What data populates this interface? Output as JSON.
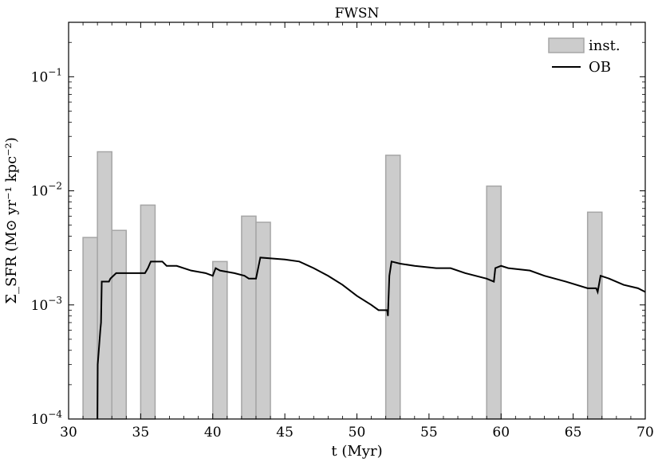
{
  "chart_data": {
    "type": "bar",
    "title": "FWSN",
    "xlabel": "t (Myr)",
    "ylabel": "Σ_SFR (M⊙ yr⁻¹ kpc⁻²)",
    "xlim": [
      30,
      70
    ],
    "ylim": [
      0.0001,
      0.3
    ],
    "yscale": "log",
    "x_ticks": [
      30,
      35,
      40,
      45,
      50,
      55,
      60,
      65,
      70
    ],
    "y_ticks": [
      0.0001,
      0.001,
      0.01,
      0.1
    ],
    "y_tick_labels": [
      "10−4",
      "10−3",
      "10−2",
      "10−1"
    ],
    "legend_position": "top-right",
    "colors": {
      "bars": "#cccccc",
      "bar_edge": "#a6a6a6",
      "line": "#000000"
    },
    "series": [
      {
        "name": "inst.",
        "type": "bar",
        "bin_width": 1,
        "bins": [
          {
            "start": 31,
            "value": 0.0039
          },
          {
            "start": 32,
            "value": 0.022
          },
          {
            "start": 33,
            "value": 0.0045
          },
          {
            "start": 35,
            "value": 0.0075
          },
          {
            "start": 40,
            "value": 0.0024
          },
          {
            "start": 42,
            "value": 0.006
          },
          {
            "start": 43,
            "value": 0.0053
          },
          {
            "start": 52,
            "value": 0.0205
          },
          {
            "start": 59,
            "value": 0.011
          },
          {
            "start": 66,
            "value": 0.0065
          }
        ]
      },
      {
        "name": "OB",
        "type": "line",
        "points": [
          [
            32,
            0.0001
          ],
          [
            32.02,
            0.0003
          ],
          [
            32.2,
            0.0006
          ],
          [
            32.25,
            0.0007
          ],
          [
            32.3,
            0.0016
          ],
          [
            32.8,
            0.0016
          ],
          [
            32.9,
            0.0017
          ],
          [
            33.3,
            0.0019
          ],
          [
            35.3,
            0.0019
          ],
          [
            35.5,
            0.0021
          ],
          [
            35.7,
            0.0024
          ],
          [
            36.5,
            0.0024
          ],
          [
            36.8,
            0.0022
          ],
          [
            37.5,
            0.0022
          ],
          [
            38.5,
            0.002
          ],
          [
            39.5,
            0.0019
          ],
          [
            40.0,
            0.0018
          ],
          [
            40.2,
            0.0021
          ],
          [
            40.5,
            0.002
          ],
          [
            41.5,
            0.0019
          ],
          [
            42.2,
            0.0018
          ],
          [
            42.5,
            0.0017
          ],
          [
            43.0,
            0.0017
          ],
          [
            43.3,
            0.0026
          ],
          [
            45.0,
            0.0025
          ],
          [
            46.0,
            0.0024
          ],
          [
            47.0,
            0.0021
          ],
          [
            48.0,
            0.0018
          ],
          [
            49.0,
            0.0015
          ],
          [
            50.0,
            0.0012
          ],
          [
            51.0,
            0.001
          ],
          [
            51.5,
            0.0009
          ],
          [
            52.1,
            0.0009
          ],
          [
            52.15,
            0.0008
          ],
          [
            52.25,
            0.0018
          ],
          [
            52.4,
            0.0024
          ],
          [
            53.0,
            0.0023
          ],
          [
            54.0,
            0.0022
          ],
          [
            55.5,
            0.0021
          ],
          [
            56.5,
            0.0021
          ],
          [
            57.5,
            0.0019
          ],
          [
            59.0,
            0.0017
          ],
          [
            59.5,
            0.0016
          ],
          [
            59.6,
            0.0021
          ],
          [
            60.0,
            0.0022
          ],
          [
            60.5,
            0.0021
          ],
          [
            62.0,
            0.002
          ],
          [
            63.0,
            0.0018
          ],
          [
            64.5,
            0.0016
          ],
          [
            66.0,
            0.0014
          ],
          [
            66.6,
            0.0014
          ],
          [
            66.7,
            0.0013
          ],
          [
            66.9,
            0.0018
          ],
          [
            67.5,
            0.0017
          ],
          [
            68.5,
            0.0015
          ],
          [
            69.5,
            0.0014
          ],
          [
            70.0,
            0.0013
          ]
        ]
      }
    ]
  }
}
